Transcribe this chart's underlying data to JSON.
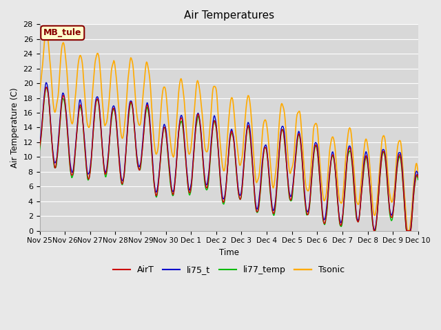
{
  "title": "Air Temperatures",
  "ylabel": "Air Temperature (C)",
  "xlabel": "Time",
  "ylim": [
    0,
    28
  ],
  "yticks": [
    0,
    2,
    4,
    6,
    8,
    10,
    12,
    14,
    16,
    18,
    20,
    22,
    24,
    26,
    28
  ],
  "colors": {
    "AirT": "#cc0000",
    "li75_t": "#0000cc",
    "li77_temp": "#00bb00",
    "Tsonic": "#ffaa00"
  },
  "linewidths": {
    "AirT": 1.0,
    "li75_t": 1.0,
    "li77_temp": 1.0,
    "Tsonic": 1.2
  },
  "legend_label": "MB_tule",
  "legend_bbox_facecolor": "#ffffcc",
  "legend_bbox_edgecolor": "#880000",
  "background_color": "#e8e8e8",
  "plot_bg_color": "#d8d8d8",
  "grid_color": "#ffffff",
  "xtick_labels": [
    "Nov 25",
    "Nov 26",
    "Nov 27",
    "Nov 28",
    "Nov 29",
    "Nov 30",
    "Dec 1",
    "Dec 2",
    "Dec 3",
    "Dec 4",
    "Dec 5",
    "Dec 6",
    "Dec 7",
    "Dec 8",
    "Dec 9",
    "Dec 10"
  ],
  "n_points": 720
}
